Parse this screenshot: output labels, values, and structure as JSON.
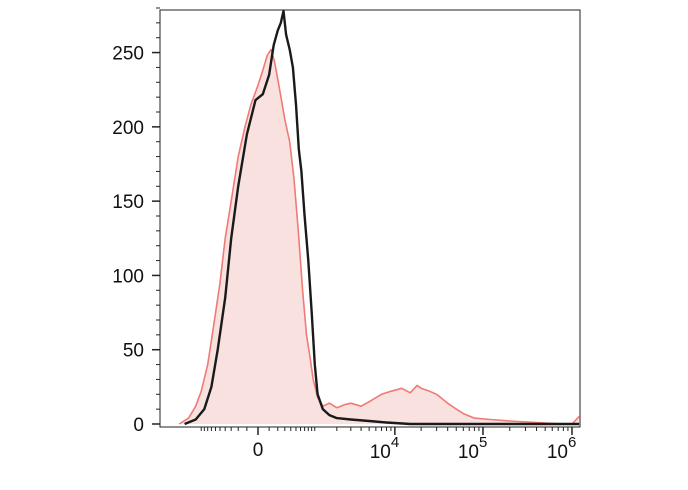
{
  "chart_data": {
    "type": "area",
    "title": "",
    "xlabel": "",
    "ylabel": "",
    "x_scale": "biexponential",
    "ylim": [
      0,
      280
    ],
    "yticks": [
      {
        "value": 0,
        "label": "0"
      },
      {
        "value": 50,
        "label": "50"
      },
      {
        "value": 100,
        "label": "100"
      },
      {
        "value": 150,
        "label": "150"
      },
      {
        "value": 200,
        "label": "200"
      },
      {
        "value": 250,
        "label": "250"
      }
    ],
    "xticks": [
      {
        "value": 0,
        "label": "0",
        "base": "",
        "exp": ""
      },
      {
        "value": 10000,
        "label": "10^4",
        "base": "10",
        "exp": "4"
      },
      {
        "value": 100000,
        "label": "10^5",
        "base": "10",
        "exp": "5"
      },
      {
        "value": 1000000,
        "label": "10^6",
        "base": "10",
        "exp": "6"
      }
    ],
    "grid": false,
    "legend": "none",
    "series": [
      {
        "style": "filled",
        "color": "#f07a76",
        "fill": "#f9e1df",
        "points": [
          [
            -2000,
            0
          ],
          [
            -1500,
            4
          ],
          [
            -1200,
            12
          ],
          [
            -1000,
            22
          ],
          [
            -800,
            40
          ],
          [
            -650,
            65
          ],
          [
            -500,
            95
          ],
          [
            -400,
            125
          ],
          [
            -300,
            150
          ],
          [
            -200,
            180
          ],
          [
            -120,
            200
          ],
          [
            -60,
            215
          ],
          [
            0,
            228
          ],
          [
            40,
            238
          ],
          [
            80,
            248
          ],
          [
            120,
            252
          ],
          [
            160,
            244
          ],
          [
            200,
            232
          ],
          [
            250,
            218
          ],
          [
            300,
            205
          ],
          [
            380,
            190
          ],
          [
            460,
            165
          ],
          [
            550,
            130
          ],
          [
            650,
            90
          ],
          [
            750,
            60
          ],
          [
            850,
            45
          ],
          [
            950,
            30
          ],
          [
            1100,
            18
          ],
          [
            1300,
            12
          ],
          [
            1600,
            14
          ],
          [
            2000,
            11
          ],
          [
            2500,
            13
          ],
          [
            3000,
            14
          ],
          [
            4000,
            12
          ],
          [
            5000,
            15
          ],
          [
            7000,
            20
          ],
          [
            9000,
            22
          ],
          [
            12000,
            24
          ],
          [
            15000,
            21
          ],
          [
            18000,
            26
          ],
          [
            20000,
            24
          ],
          [
            25000,
            22
          ],
          [
            30000,
            20
          ],
          [
            40000,
            14
          ],
          [
            50000,
            10
          ],
          [
            60000,
            7
          ],
          [
            80000,
            4
          ],
          [
            120000,
            3
          ],
          [
            200000,
            2
          ],
          [
            400000,
            1
          ],
          [
            800000,
            0
          ],
          [
            1000000,
            0
          ],
          [
            1200000,
            5
          ]
        ]
      },
      {
        "style": "line",
        "color": "#1a1a1a",
        "points": [
          [
            -1700,
            0
          ],
          [
            -1200,
            3
          ],
          [
            -900,
            10
          ],
          [
            -700,
            25
          ],
          [
            -550,
            50
          ],
          [
            -400,
            85
          ],
          [
            -300,
            125
          ],
          [
            -200,
            160
          ],
          [
            -100,
            195
          ],
          [
            -20,
            218
          ],
          [
            40,
            222
          ],
          [
            100,
            235
          ],
          [
            150,
            255
          ],
          [
            200,
            265
          ],
          [
            240,
            270
          ],
          [
            280,
            278
          ],
          [
            320,
            262
          ],
          [
            380,
            252
          ],
          [
            440,
            240
          ],
          [
            500,
            215
          ],
          [
            560,
            185
          ],
          [
            620,
            170
          ],
          [
            700,
            140
          ],
          [
            800,
            110
          ],
          [
            900,
            75
          ],
          [
            1000,
            40
          ],
          [
            1100,
            20
          ],
          [
            1300,
            10
          ],
          [
            1600,
            6
          ],
          [
            2000,
            4
          ],
          [
            3000,
            3
          ],
          [
            5000,
            2
          ],
          [
            8000,
            1
          ],
          [
            15000,
            0
          ],
          [
            1200000,
            0
          ]
        ]
      }
    ]
  }
}
